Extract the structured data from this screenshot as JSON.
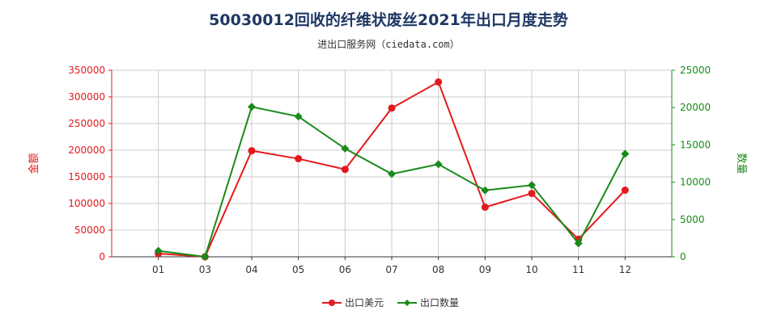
{
  "title": "50030012回收的纤维状废丝2021年出口月度走势",
  "subtitle": "进出口服务网（ciedata.com）",
  "colors": {
    "value": "#e31a1c",
    "qty": "#1a8a1a",
    "title": "#1f3864",
    "grid": "#cccccc"
  },
  "chart_data": {
    "type": "line",
    "categories": [
      "01",
      "03",
      "04",
      "05",
      "06",
      "07",
      "08",
      "09",
      "10",
      "11",
      "12"
    ],
    "series": [
      {
        "name": "出口美元",
        "axis": "left",
        "values": [
          6000,
          0,
          199000,
          184000,
          164000,
          279000,
          328000,
          93000,
          119000,
          33000,
          125000
        ]
      },
      {
        "name": "出口数量",
        "axis": "right",
        "values": [
          800,
          0,
          20100,
          18800,
          14500,
          11100,
          12400,
          8900,
          9600,
          1800,
          13800
        ]
      }
    ],
    "ylabel_left": "金额",
    "ylabel_right": "数量",
    "ylim_left": [
      0,
      350000
    ],
    "ylim_right": [
      0,
      25000
    ],
    "yticks_left": [
      "0",
      "50000",
      "100000",
      "150000",
      "200000",
      "250000",
      "300000",
      "350000"
    ],
    "yticks_right": [
      "0",
      "5000",
      "10000",
      "15000",
      "20000",
      "25000"
    ],
    "grid": true,
    "legend_position": "bottom-center"
  }
}
